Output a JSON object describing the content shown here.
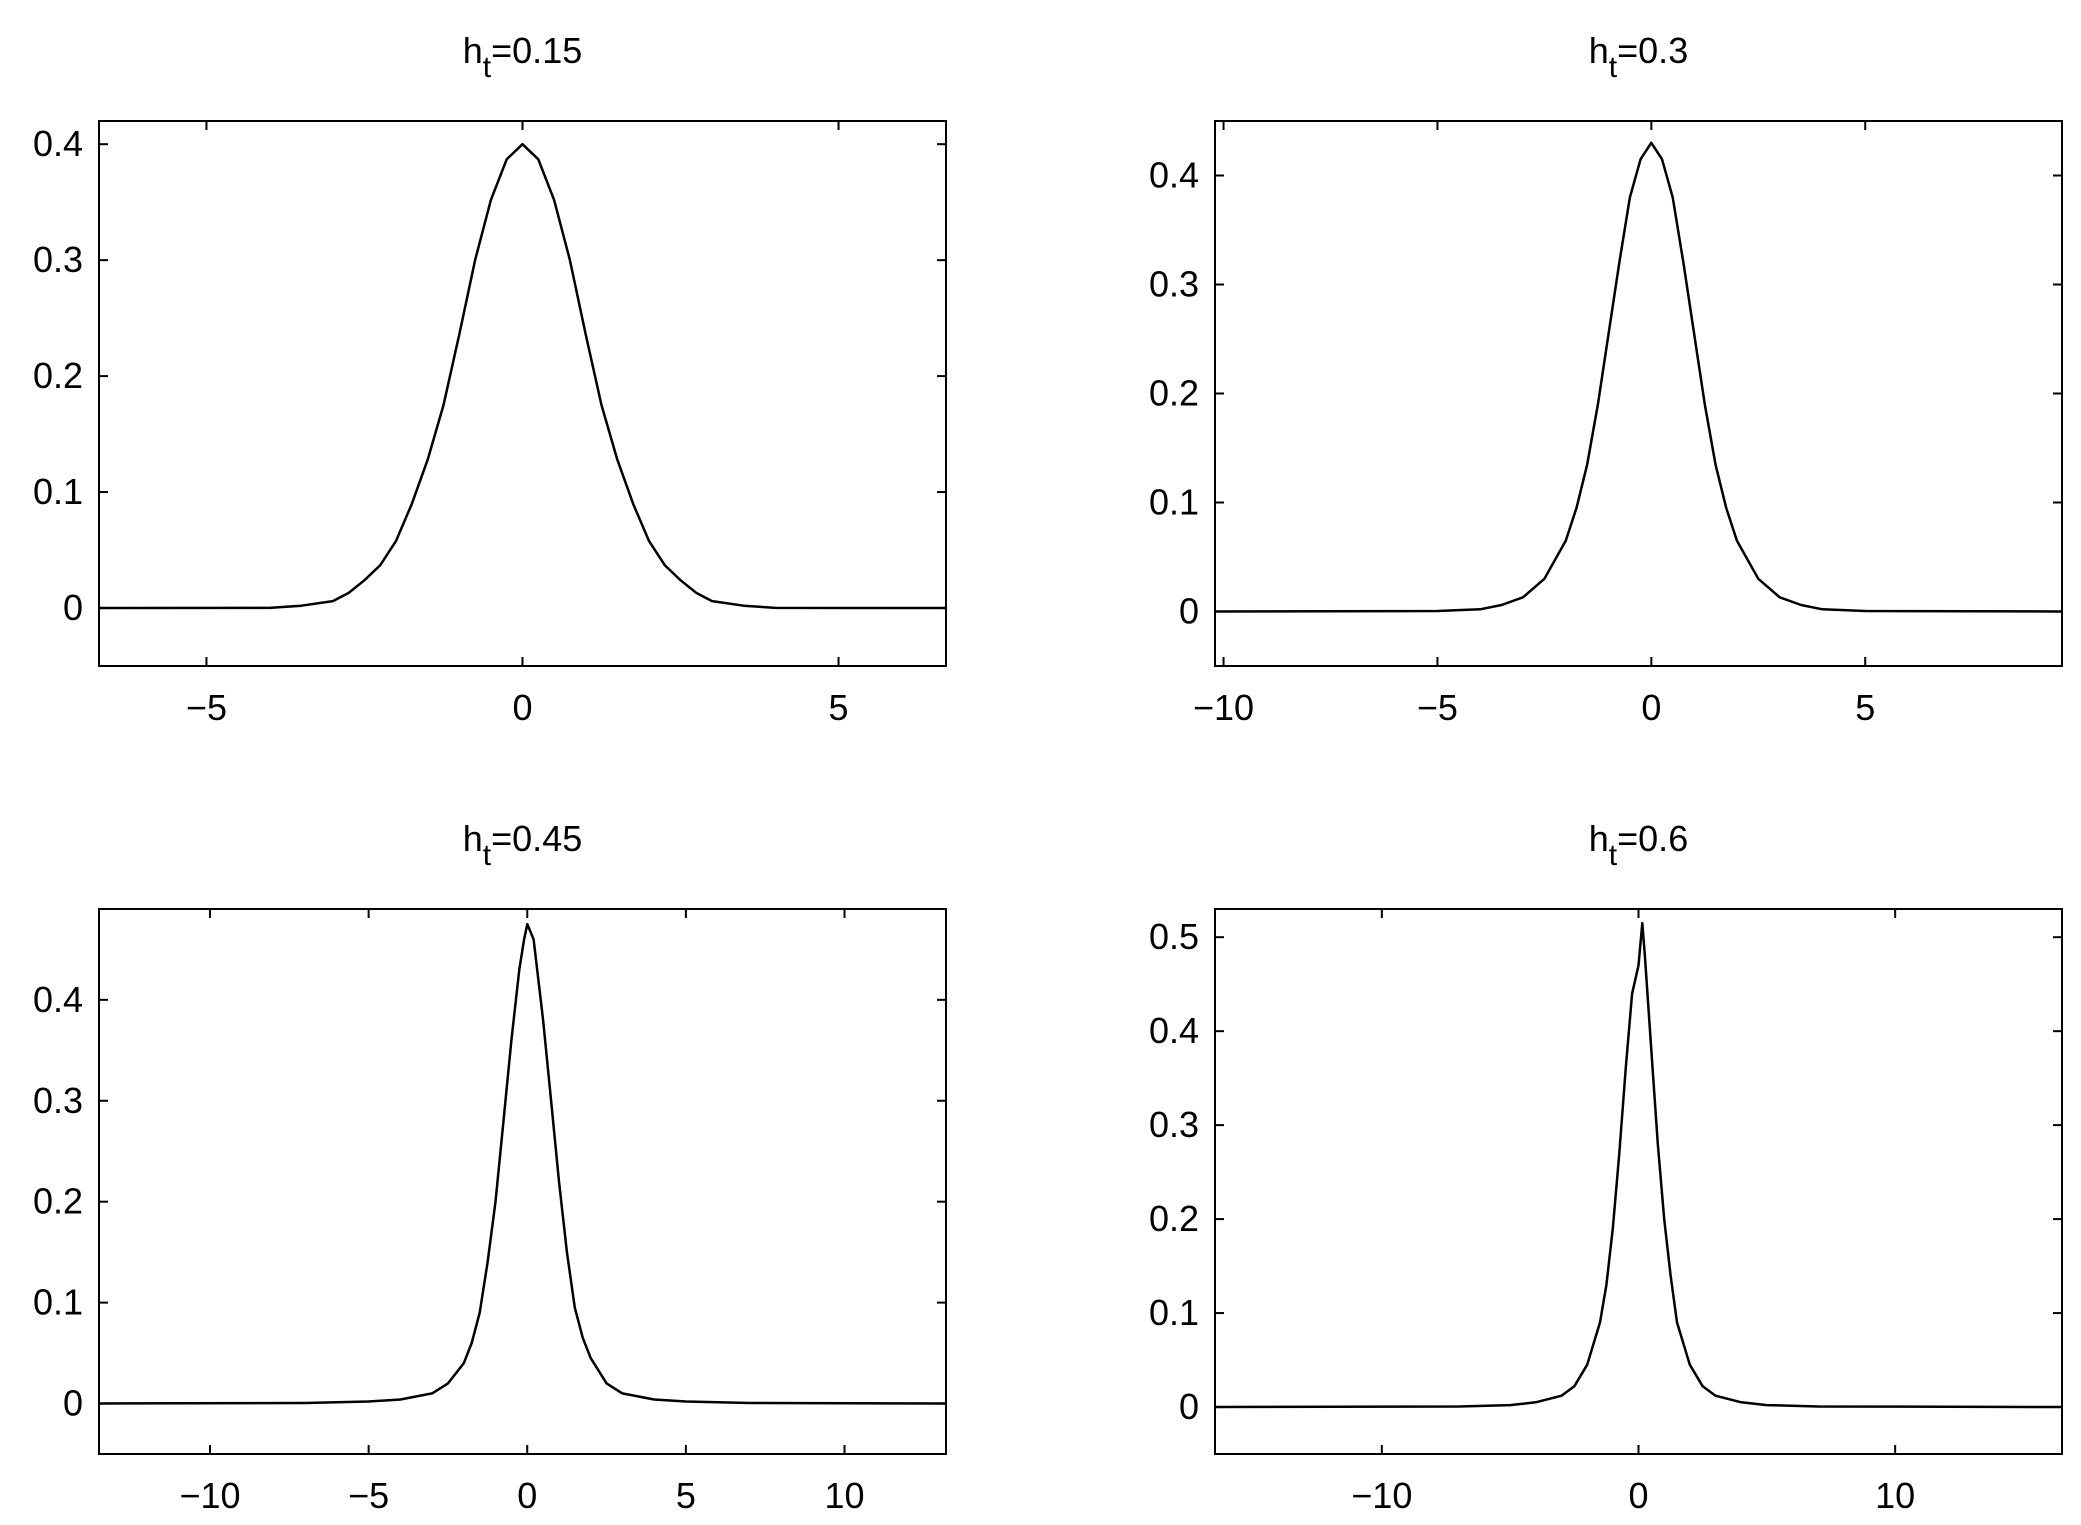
{
  "chart_data": [
    {
      "type": "line",
      "title": {
        "main": "h",
        "sub": "t",
        "rest": "=0.15"
      },
      "xlim": [
        -6.7,
        6.7
      ],
      "ylim": [
        -0.05,
        0.42
      ],
      "xticks": [
        -5,
        0,
        5
      ],
      "yticks": [
        0,
        0.1,
        0.2,
        0.3,
        0.4
      ],
      "xtick_labels": [
        "−5",
        "0",
        "5"
      ],
      "ytick_labels": [
        "0",
        "0.1",
        "0.2",
        "0.3",
        "0.4"
      ],
      "series": [
        {
          "x": [
            -6.7,
            -4.0,
            -3.5,
            -3.0,
            -2.75,
            -2.5,
            -2.25,
            -2.0,
            -1.75,
            -1.5,
            -1.25,
            -1.0,
            -0.75,
            -0.5,
            -0.25,
            0.0,
            0.25,
            0.5,
            0.75,
            1.0,
            1.25,
            1.5,
            1.75,
            2.0,
            2.25,
            2.5,
            2.75,
            3.0,
            3.5,
            4.0,
            6.7
          ],
          "y": [
            0.0,
            0.0001,
            0.002,
            0.006,
            0.013,
            0.024,
            0.037,
            0.058,
            0.09,
            0.128,
            0.175,
            0.236,
            0.3,
            0.352,
            0.387,
            0.4,
            0.387,
            0.352,
            0.3,
            0.236,
            0.175,
            0.128,
            0.09,
            0.058,
            0.037,
            0.024,
            0.013,
            0.006,
            0.002,
            0.0001,
            0.0
          ]
        }
      ]
    },
    {
      "type": "line",
      "title": {
        "main": "h",
        "sub": "t",
        "rest": "=0.3"
      },
      "xlim": [
        -10.2,
        9.6
      ],
      "ylim": [
        -0.05,
        0.45
      ],
      "xticks": [
        -10,
        -5,
        0,
        5
      ],
      "yticks": [
        0,
        0.1,
        0.2,
        0.3,
        0.4
      ],
      "xtick_labels": [
        "−10",
        "−5",
        "0",
        "5"
      ],
      "ytick_labels": [
        "0",
        "0.1",
        "0.2",
        "0.3",
        "0.4"
      ],
      "series": [
        {
          "x": [
            -10.2,
            -5.0,
            -4.0,
            -3.5,
            -3.0,
            -2.5,
            -2.0,
            -1.75,
            -1.5,
            -1.25,
            -1.0,
            -0.75,
            -0.5,
            -0.25,
            0.0,
            0.25,
            0.5,
            0.75,
            1.0,
            1.25,
            1.5,
            1.75,
            2.0,
            2.5,
            3.0,
            3.5,
            4.0,
            5.0,
            9.6
          ],
          "y": [
            0.0,
            0.0005,
            0.002,
            0.006,
            0.013,
            0.03,
            0.065,
            0.095,
            0.135,
            0.19,
            0.255,
            0.32,
            0.38,
            0.415,
            0.43,
            0.415,
            0.38,
            0.32,
            0.255,
            0.19,
            0.135,
            0.095,
            0.065,
            0.03,
            0.013,
            0.006,
            0.002,
            0.0005,
            0.0
          ]
        }
      ]
    },
    {
      "type": "line",
      "title": {
        "main": "h",
        "sub": "t",
        "rest": "=0.45"
      },
      "xlim": [
        -13.5,
        13.2
      ],
      "ylim": [
        -0.05,
        0.49
      ],
      "xticks": [
        -10,
        -5,
        0,
        5,
        10
      ],
      "yticks": [
        0,
        0.1,
        0.2,
        0.3,
        0.4
      ],
      "xtick_labels": [
        "−10",
        "−5",
        "0",
        "5",
        "10"
      ],
      "ytick_labels": [
        "0",
        "0.1",
        "0.2",
        "0.3",
        "0.4"
      ],
      "series": [
        {
          "x": [
            -13.5,
            -7.0,
            -5.0,
            -4.0,
            -3.0,
            -2.5,
            -2.0,
            -1.75,
            -1.5,
            -1.25,
            -1.0,
            -0.75,
            -0.5,
            -0.25,
            -0.1,
            0.0,
            0.2,
            0.5,
            0.75,
            1.0,
            1.25,
            1.5,
            1.75,
            2.0,
            2.5,
            3.0,
            4.0,
            5.0,
            7.0,
            13.2
          ],
          "y": [
            0.0,
            0.0005,
            0.002,
            0.004,
            0.01,
            0.02,
            0.04,
            0.06,
            0.09,
            0.14,
            0.2,
            0.28,
            0.36,
            0.43,
            0.46,
            0.475,
            0.46,
            0.38,
            0.3,
            0.22,
            0.15,
            0.095,
            0.065,
            0.045,
            0.02,
            0.01,
            0.004,
            0.002,
            0.0005,
            0.0
          ]
        }
      ]
    },
    {
      "type": "line",
      "title": {
        "main": "h",
        "sub": "t",
        "rest": "=0.6"
      },
      "xlim": [
        -16.5,
        16.5
      ],
      "ylim": [
        -0.05,
        0.53
      ],
      "xticks": [
        -10,
        0,
        10
      ],
      "yticks": [
        0,
        0.1,
        0.2,
        0.3,
        0.4,
        0.5
      ],
      "xtick_labels": [
        "−10",
        "0",
        "10"
      ],
      "ytick_labels": [
        "0",
        "0.1",
        "0.2",
        "0.3",
        "0.4",
        "0.5"
      ],
      "series": [
        {
          "x": [
            -16.5,
            -7.0,
            -5.0,
            -4.0,
            -3.0,
            -2.5,
            -2.0,
            -1.5,
            -1.25,
            -1.0,
            -0.75,
            -0.5,
            -0.25,
            0.0,
            0.15,
            0.25,
            0.5,
            0.75,
            1.0,
            1.25,
            1.5,
            2.0,
            2.5,
            3.0,
            4.0,
            5.0,
            7.0,
            16.5
          ],
          "y": [
            0.0,
            0.0005,
            0.002,
            0.005,
            0.012,
            0.022,
            0.045,
            0.09,
            0.13,
            0.19,
            0.27,
            0.36,
            0.44,
            0.47,
            0.515,
            0.48,
            0.38,
            0.28,
            0.2,
            0.14,
            0.09,
            0.045,
            0.022,
            0.012,
            0.005,
            0.002,
            0.0005,
            0.0
          ]
        }
      ]
    }
  ]
}
